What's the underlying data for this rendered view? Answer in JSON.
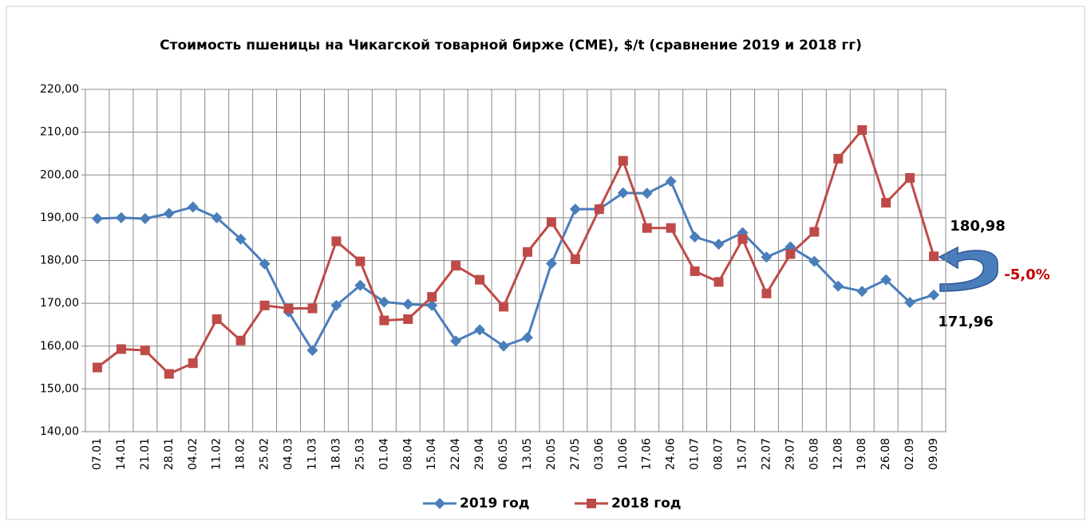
{
  "chart_data": {
    "type": "line",
    "title": "Стоимость пшеницы на Чикагской товарной бирже (СМЕ), $/t  (сравнение 2019 и 2018 гг)",
    "categories": [
      "07.01",
      "14.01",
      "21.01",
      "28.01",
      "04.02",
      "11.02",
      "18.02",
      "25.02",
      "04.03",
      "11.03",
      "18.03",
      "25.03",
      "01.04",
      "08.04",
      "15.04",
      "22.04",
      "29.04",
      "06.05",
      "13.05",
      "20.05",
      "27.05",
      "03.06",
      "10.06",
      "17.06",
      "24.06",
      "01.07",
      "08.07",
      "15.07",
      "22.07",
      "29.07",
      "05.08",
      "12.08",
      "19.08",
      "26.08",
      "02.09",
      "09.09"
    ],
    "series": [
      {
        "name": "2019 год",
        "color": "#4a7ebb",
        "marker": "diamond",
        "values": [
          189.8,
          190,
          189.8,
          191,
          192.5,
          190,
          185,
          179.2,
          168,
          159,
          169.5,
          174.2,
          170.3,
          169.8,
          169.5,
          161.2,
          163.8,
          160,
          162,
          179.3,
          192,
          192,
          195.8,
          195.7,
          198.5,
          185.5,
          183.8,
          186.5,
          180.8,
          183.2,
          179.8,
          174,
          172.8,
          175.5,
          170.2,
          171.96
        ]
      },
      {
        "name": "2018 год",
        "color": "#be4b48",
        "marker": "square",
        "values": [
          155,
          159.3,
          159,
          153.5,
          156,
          166.3,
          161.3,
          169.5,
          168.8,
          168.8,
          184.5,
          179.8,
          166,
          166.3,
          171.5,
          178.8,
          175.5,
          169.2,
          182,
          189,
          180.3,
          192,
          203.3,
          187.6,
          187.6,
          177.5,
          175,
          185,
          172.3,
          181.5,
          186.7,
          203.8,
          210.5,
          193.5,
          199.3,
          180.98
        ]
      }
    ],
    "ylim": [
      140,
      220
    ],
    "yticks": [
      {
        "value": 140,
        "label": "140,00"
      },
      {
        "value": 150,
        "label": "150,00"
      },
      {
        "value": 160,
        "label": "160,00"
      },
      {
        "value": 170,
        "label": "170,00"
      },
      {
        "value": 180,
        "label": "180,00"
      },
      {
        "value": 190,
        "label": "190,00"
      },
      {
        "value": 200,
        "label": "200,00"
      },
      {
        "value": 210,
        "label": "210,00"
      },
      {
        "value": 220,
        "label": "220,00"
      }
    ],
    "grid": true,
    "legend": "bottom",
    "annotations": [
      "180,98",
      "171,96",
      "-5,0%"
    ]
  }
}
